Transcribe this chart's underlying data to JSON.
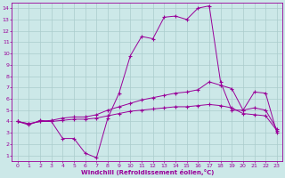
{
  "xlabel": "Windchill (Refroidissement éolien,°C)",
  "bg_color": "#cce8e8",
  "line_color": "#990099",
  "grid_color": "#aacccc",
  "xlim": [
    -0.5,
    23.5
  ],
  "ylim": [
    0.5,
    14.5
  ],
  "xticks": [
    0,
    1,
    2,
    3,
    4,
    5,
    6,
    7,
    8,
    9,
    10,
    11,
    12,
    13,
    14,
    15,
    16,
    17,
    18,
    19,
    20,
    21,
    22,
    23
  ],
  "yticks": [
    1,
    2,
    3,
    4,
    5,
    6,
    7,
    8,
    9,
    10,
    11,
    12,
    13,
    14
  ],
  "line1_x": [
    0,
    1,
    2,
    3,
    4,
    5,
    6,
    7,
    8,
    9,
    10,
    11,
    12,
    13,
    14,
    15,
    16,
    17,
    18,
    19,
    20,
    21,
    22,
    23
  ],
  "line1_y": [
    4.0,
    3.7,
    4.1,
    4.0,
    2.5,
    2.5,
    1.2,
    0.8,
    4.3,
    6.5,
    9.8,
    11.5,
    11.3,
    13.2,
    13.3,
    13.0,
    14.0,
    14.2,
    7.5,
    5.0,
    5.0,
    6.6,
    6.5,
    3.0
  ],
  "line2_x": [
    0,
    1,
    2,
    3,
    4,
    5,
    6,
    7,
    8,
    9,
    10,
    11,
    12,
    13,
    14,
    15,
    16,
    17,
    18,
    19,
    20,
    21,
    22,
    23
  ],
  "line2_y": [
    4.0,
    3.8,
    4.0,
    4.1,
    4.3,
    4.4,
    4.4,
    4.6,
    5.0,
    5.3,
    5.6,
    5.9,
    6.1,
    6.3,
    6.5,
    6.6,
    6.8,
    7.5,
    7.2,
    6.9,
    5.0,
    5.2,
    5.0,
    3.3
  ],
  "line3_x": [
    0,
    1,
    2,
    3,
    4,
    5,
    6,
    7,
    8,
    9,
    10,
    11,
    12,
    13,
    14,
    15,
    16,
    17,
    18,
    19,
    20,
    21,
    22,
    23
  ],
  "line3_y": [
    4.0,
    3.8,
    4.0,
    4.0,
    4.1,
    4.2,
    4.2,
    4.3,
    4.5,
    4.7,
    4.9,
    5.0,
    5.1,
    5.2,
    5.3,
    5.3,
    5.4,
    5.5,
    5.4,
    5.2,
    4.7,
    4.6,
    4.5,
    3.2
  ]
}
